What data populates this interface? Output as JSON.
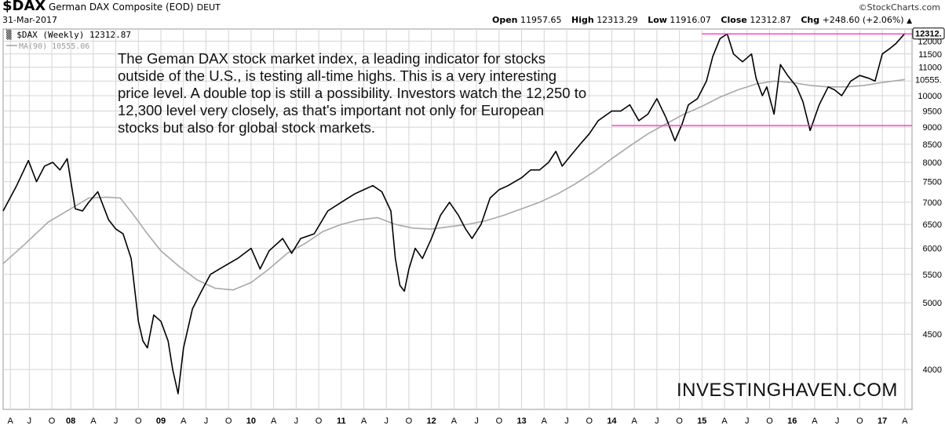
{
  "header": {
    "symbol": "$DAX",
    "name": "German DAX Composite (EOD)",
    "exchange": "DEUT",
    "date": "31-Mar-2017",
    "credit": "©StockCharts.com",
    "open_label": "Open",
    "open": "11957.65",
    "high_label": "High",
    "high": "12313.29",
    "low_label": "Low",
    "low": "11916.07",
    "close_label": "Close",
    "close": "12312.87",
    "chg_label": "Chg",
    "chg": "+248.60 (+2.06%)"
  },
  "legend": {
    "price": "$DAX (Weekly) 12312.87",
    "ma": "MA(90) 10555.06"
  },
  "annotation": "The Geman DAX stock market index, a leading indicator for stocks outside of the U.S., is testing all-time highs. This is a very interesting price level. A double top is still a possibility. Investors watch the 12,250 to 12,300 level very closely, as that's important not only for European stocks but also for global stock markets.",
  "watermark": "INVESTINGHAVEN.COM",
  "colors": {
    "price": "#000000",
    "ma": "#a8a8a8",
    "level": "#ff33cc",
    "grid": "#d4d4d4"
  },
  "chart_data": {
    "type": "line",
    "y_scale": "log",
    "ylim": [
      3500,
      12500
    ],
    "xlim": [
      2007.25,
      2017.33
    ],
    "grid": true,
    "y_ticks": [
      4000,
      4500,
      5000,
      5500,
      6000,
      6500,
      7000,
      7500,
      8000,
      8500,
      9000,
      9500,
      10000,
      10500,
      11000,
      11500,
      12000
    ],
    "y_tick_labels": [
      "4000",
      "4500",
      "5000",
      "5500",
      "6000",
      "6500",
      "7000",
      "7500",
      "8000",
      "8500",
      "9000",
      "9500",
      "10000",
      "10500",
      "11000",
      "11500",
      "12000"
    ],
    "last_value_labels": [
      {
        "series": "DAX",
        "text": "12312.",
        "value": 12312.87
      },
      {
        "series": "MA(90)",
        "text": "10555.",
        "value": 10555.06
      }
    ],
    "x_ticks": [
      {
        "x": 2007.33,
        "label": "A"
      },
      {
        "x": 2007.54,
        "label": "J"
      },
      {
        "x": 2007.79,
        "label": "O"
      },
      {
        "x": 2008.0,
        "label": "08",
        "year": true
      },
      {
        "x": 2008.25,
        "label": "A"
      },
      {
        "x": 2008.5,
        "label": "J"
      },
      {
        "x": 2008.75,
        "label": "O"
      },
      {
        "x": 2009.0,
        "label": "09",
        "year": true
      },
      {
        "x": 2009.25,
        "label": "A"
      },
      {
        "x": 2009.5,
        "label": "J"
      },
      {
        "x": 2009.75,
        "label": "O"
      },
      {
        "x": 2010.0,
        "label": "10",
        "year": true
      },
      {
        "x": 2010.25,
        "label": "A"
      },
      {
        "x": 2010.5,
        "label": "J"
      },
      {
        "x": 2010.75,
        "label": "O"
      },
      {
        "x": 2011.0,
        "label": "11",
        "year": true
      },
      {
        "x": 2011.25,
        "label": "A"
      },
      {
        "x": 2011.5,
        "label": "J"
      },
      {
        "x": 2011.75,
        "label": "O"
      },
      {
        "x": 2012.0,
        "label": "12",
        "year": true
      },
      {
        "x": 2012.25,
        "label": "A"
      },
      {
        "x": 2012.5,
        "label": "J"
      },
      {
        "x": 2012.75,
        "label": "O"
      },
      {
        "x": 2013.0,
        "label": "13",
        "year": true
      },
      {
        "x": 2013.25,
        "label": "A"
      },
      {
        "x": 2013.5,
        "label": "J"
      },
      {
        "x": 2013.75,
        "label": "O"
      },
      {
        "x": 2014.0,
        "label": "14",
        "year": true
      },
      {
        "x": 2014.25,
        "label": "A"
      },
      {
        "x": 2014.5,
        "label": "J"
      },
      {
        "x": 2014.75,
        "label": "O"
      },
      {
        "x": 2015.0,
        "label": "15",
        "year": true
      },
      {
        "x": 2015.25,
        "label": "A"
      },
      {
        "x": 2015.5,
        "label": "J"
      },
      {
        "x": 2015.75,
        "label": "O"
      },
      {
        "x": 2016.0,
        "label": "16",
        "year": true
      },
      {
        "x": 2016.25,
        "label": "A"
      },
      {
        "x": 2016.5,
        "label": "J"
      },
      {
        "x": 2016.75,
        "label": "O"
      },
      {
        "x": 2017.0,
        "label": "17",
        "year": true
      },
      {
        "x": 2017.25,
        "label": "A"
      }
    ],
    "levels": [
      {
        "value": 12300,
        "x_from": 2015.0,
        "x_to": 2017.33
      },
      {
        "value": 9050,
        "x_from": 2014.0,
        "x_to": 2017.33
      }
    ],
    "series": [
      {
        "name": "$DAX (Weekly)",
        "x": [
          2007.25,
          2007.4,
          2007.53,
          2007.62,
          2007.71,
          2007.8,
          2007.88,
          2007.96,
          2008.05,
          2008.13,
          2008.2,
          2008.3,
          2008.42,
          2008.5,
          2008.58,
          2008.67,
          2008.75,
          2008.8,
          2008.85,
          2008.92,
          2009.0,
          2009.08,
          2009.13,
          2009.19,
          2009.25,
          2009.35,
          2009.45,
          2009.55,
          2009.65,
          2009.75,
          2009.85,
          2010.0,
          2010.1,
          2010.2,
          2010.35,
          2010.45,
          2010.55,
          2010.7,
          2010.85,
          2011.0,
          2011.15,
          2011.25,
          2011.35,
          2011.45,
          2011.55,
          2011.6,
          2011.65,
          2011.7,
          2011.75,
          2011.82,
          2011.9,
          2012.0,
          2012.1,
          2012.2,
          2012.3,
          2012.38,
          2012.45,
          2012.55,
          2012.65,
          2012.75,
          2012.85,
          2013.0,
          2013.1,
          2013.2,
          2013.3,
          2013.38,
          2013.45,
          2013.55,
          2013.65,
          2013.75,
          2013.85,
          2014.0,
          2014.1,
          2014.2,
          2014.3,
          2014.4,
          2014.5,
          2014.6,
          2014.7,
          2014.78,
          2014.85,
          2014.95,
          2015.05,
          2015.12,
          2015.2,
          2015.28,
          2015.35,
          2015.45,
          2015.55,
          2015.6,
          2015.67,
          2015.72,
          2015.8,
          2015.87,
          2015.95,
          2016.05,
          2016.12,
          2016.2,
          2016.3,
          2016.4,
          2016.47,
          2016.55,
          2016.65,
          2016.75,
          2016.85,
          2016.92,
          2017.0,
          2017.08,
          2017.15,
          2017.25
        ],
        "values": [
          6800,
          7400,
          8050,
          7500,
          7900,
          8000,
          7800,
          8100,
          6850,
          6800,
          7000,
          7250,
          6600,
          6400,
          6300,
          5800,
          4700,
          4400,
          4300,
          4800,
          4700,
          4400,
          4000,
          3690,
          4300,
          4900,
          5200,
          5500,
          5600,
          5700,
          5800,
          6000,
          5600,
          5950,
          6200,
          5900,
          6200,
          6300,
          6800,
          7000,
          7200,
          7300,
          7400,
          7250,
          6800,
          5800,
          5300,
          5200,
          5600,
          6000,
          5800,
          6200,
          6700,
          7000,
          6700,
          6400,
          6200,
          6500,
          7100,
          7300,
          7400,
          7600,
          7800,
          7800,
          8000,
          8300,
          7900,
          8200,
          8500,
          8800,
          9200,
          9500,
          9500,
          9700,
          9200,
          9400,
          9900,
          9300,
          8600,
          9100,
          9700,
          9900,
          10500,
          11400,
          12100,
          12300,
          11500,
          11200,
          11500,
          10600,
          10000,
          10300,
          9400,
          11100,
          10700,
          10300,
          9800,
          8900,
          9700,
          10300,
          10200,
          10000,
          10500,
          10700,
          10600,
          10500,
          11500,
          11700,
          11900,
          12312.87
        ]
      },
      {
        "name": "MA(90)",
        "x": [
          2007.25,
          2007.5,
          2007.75,
          2008.0,
          2008.2,
          2008.4,
          2008.55,
          2008.7,
          2008.85,
          2009.0,
          2009.2,
          2009.4,
          2009.6,
          2009.8,
          2010.0,
          2010.2,
          2010.4,
          2010.6,
          2010.8,
          2011.0,
          2011.2,
          2011.4,
          2011.6,
          2011.8,
          2012.0,
          2012.2,
          2012.4,
          2012.6,
          2012.8,
          2013.0,
          2013.2,
          2013.4,
          2013.6,
          2013.8,
          2014.0,
          2014.2,
          2014.4,
          2014.6,
          2014.8,
          2015.0,
          2015.2,
          2015.4,
          2015.6,
          2015.8,
          2016.0,
          2016.2,
          2016.4,
          2016.6,
          2016.8,
          2017.0,
          2017.25
        ],
        "values": [
          5700,
          6100,
          6550,
          6850,
          7100,
          7120,
          7100,
          6700,
          6300,
          5950,
          5650,
          5400,
          5250,
          5220,
          5350,
          5600,
          5900,
          6100,
          6350,
          6500,
          6600,
          6650,
          6500,
          6420,
          6400,
          6450,
          6500,
          6580,
          6700,
          6850,
          7000,
          7200,
          7450,
          7750,
          8100,
          8450,
          8800,
          9100,
          9400,
          9650,
          9950,
          10200,
          10400,
          10500,
          10450,
          10350,
          10300,
          10300,
          10350,
          10450,
          10555.06
        ]
      }
    ]
  }
}
